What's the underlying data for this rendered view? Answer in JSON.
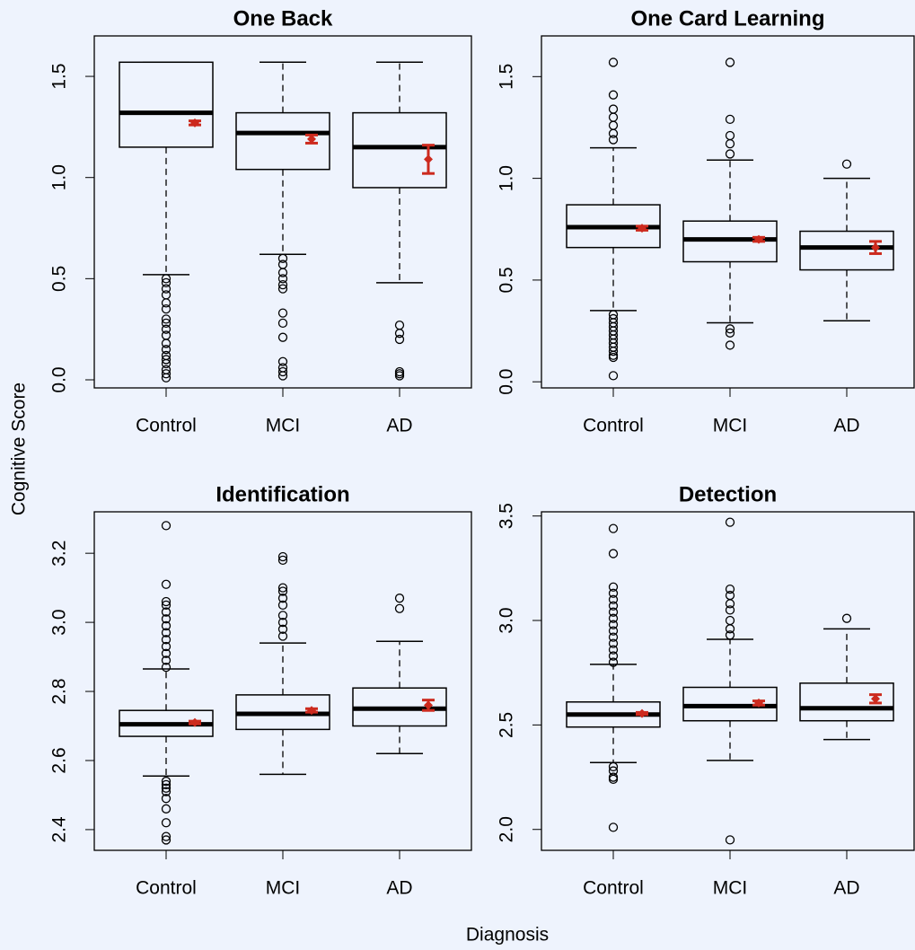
{
  "xlabel": "Diagnosis",
  "ylabel": "Cognitive Score",
  "chart_data": [
    {
      "type": "box",
      "title": "One Back",
      "categories": [
        "Control",
        "MCI",
        "AD"
      ],
      "ylim": [
        -0.04,
        1.7
      ],
      "yticks": [
        {
          "value": 0,
          "label": "0.0"
        },
        0.5,
        {
          "value": 1,
          "label": "1.0"
        },
        1.5
      ],
      "box_color": "#000000",
      "mean_color": "#cc2a1e",
      "boxes": [
        {
          "whisker_low": 0.52,
          "q1": 1.15,
          "median": 1.32,
          "q3": 1.57,
          "whisker_high": 1.57,
          "mean": 1.27,
          "mean_error": 0.01,
          "outliers": [
            0.5,
            0.48,
            0.45,
            0.42,
            0.38,
            0.35,
            0.3,
            0.28,
            0.25,
            0.22,
            0.18,
            0.15,
            0.12,
            0.1,
            0.08,
            0.05,
            0.03,
            0.01
          ]
        },
        {
          "whisker_low": 0.62,
          "q1": 1.04,
          "median": 1.22,
          "q3": 1.32,
          "whisker_high": 1.57,
          "mean": 1.19,
          "mean_error": 0.02,
          "outliers": [
            0.6,
            0.57,
            0.53,
            0.5,
            0.47,
            0.45,
            0.33,
            0.28,
            0.21,
            0.09,
            0.06,
            0.04,
            0.02
          ]
        },
        {
          "whisker_low": 0.48,
          "q1": 0.95,
          "median": 1.15,
          "q3": 1.32,
          "whisker_high": 1.57,
          "mean": 1.09,
          "mean_error": 0.07,
          "outliers": [
            0.27,
            0.23,
            0.2,
            0.04,
            0.03,
            0.02
          ]
        }
      ]
    },
    {
      "type": "box",
      "title": "One Card Learning",
      "categories": [
        "Control",
        "MCI",
        "AD"
      ],
      "ylim": [
        -0.03,
        1.7
      ],
      "yticks": [
        {
          "value": 0,
          "label": "0.0"
        },
        0.5,
        {
          "value": 1,
          "label": "1.0"
        },
        1.5
      ],
      "box_color": "#000000",
      "mean_color": "#cc2a1e",
      "boxes": [
        {
          "whisker_low": 0.35,
          "q1": 0.66,
          "median": 0.76,
          "q3": 0.87,
          "whisker_high": 1.15,
          "mean": 0.755,
          "mean_error": 0.01,
          "outliers": [
            1.19,
            1.22,
            1.26,
            1.3,
            1.34,
            1.41,
            1.57,
            0.33,
            0.31,
            0.29,
            0.27,
            0.25,
            0.23,
            0.21,
            0.19,
            0.17,
            0.15,
            0.13,
            0.12,
            0.03
          ]
        },
        {
          "whisker_low": 0.29,
          "q1": 0.59,
          "median": 0.7,
          "q3": 0.79,
          "whisker_high": 1.09,
          "mean": 0.7,
          "mean_error": 0.01,
          "outliers": [
            1.12,
            1.17,
            1.21,
            1.29,
            1.57,
            0.26,
            0.24,
            0.18
          ]
        },
        {
          "whisker_low": 0.3,
          "q1": 0.55,
          "median": 0.66,
          "q3": 0.74,
          "whisker_high": 1.0,
          "mean": 0.66,
          "mean_error": 0.03,
          "outliers": [
            1.07
          ]
        }
      ]
    },
    {
      "type": "box",
      "title": "Identification",
      "categories": [
        "Control",
        "MCI",
        "AD"
      ],
      "ylim": [
        2.34,
        3.32
      ],
      "yticks": [
        2.4,
        2.6,
        2.8,
        {
          "value": 3,
          "label": "3.0"
        },
        3.2
      ],
      "box_color": "#000000",
      "mean_color": "#cc2a1e",
      "boxes": [
        {
          "whisker_low": 2.555,
          "q1": 2.67,
          "median": 2.705,
          "q3": 2.745,
          "whisker_high": 2.865,
          "mean": 2.71,
          "mean_error": 0.004,
          "outliers": [
            2.87,
            2.89,
            2.91,
            2.93,
            2.95,
            2.97,
            2.99,
            3.01,
            3.03,
            3.05,
            3.06,
            3.11,
            3.28,
            2.54,
            2.53,
            2.52,
            2.51,
            2.49,
            2.46,
            2.42,
            2.38,
            2.37
          ]
        },
        {
          "whisker_low": 2.56,
          "q1": 2.69,
          "median": 2.735,
          "q3": 2.79,
          "whisker_high": 2.94,
          "mean": 2.745,
          "mean_error": 0.005,
          "outliers": [
            2.96,
            2.98,
            3.0,
            3.02,
            3.05,
            3.07,
            3.09,
            3.1,
            3.18,
            3.19
          ]
        },
        {
          "whisker_low": 2.62,
          "q1": 2.7,
          "median": 2.75,
          "q3": 2.81,
          "whisker_high": 2.945,
          "mean": 2.76,
          "mean_error": 0.015,
          "outliers": [
            3.04,
            3.07
          ]
        }
      ]
    },
    {
      "type": "box",
      "title": "Detection",
      "categories": [
        "Control",
        "MCI",
        "AD"
      ],
      "ylim": [
        1.9,
        3.52
      ],
      "yticks": [
        {
          "value": 2,
          "label": "2.0"
        },
        2.5,
        {
          "value": 3,
          "label": "3.0"
        },
        3.5
      ],
      "box_color": "#000000",
      "mean_color": "#cc2a1e",
      "boxes": [
        {
          "whisker_low": 2.32,
          "q1": 2.49,
          "median": 2.55,
          "q3": 2.61,
          "whisker_high": 2.79,
          "mean": 2.555,
          "mean_error": 0.005,
          "outliers": [
            2.8,
            2.83,
            2.86,
            2.89,
            2.92,
            2.95,
            2.98,
            3.01,
            3.04,
            3.07,
            3.1,
            3.13,
            3.16,
            3.32,
            3.44,
            2.3,
            2.28,
            2.25,
            2.24,
            2.01
          ]
        },
        {
          "whisker_low": 2.33,
          "q1": 2.52,
          "median": 2.59,
          "q3": 2.68,
          "whisker_high": 2.91,
          "mean": 2.605,
          "mean_error": 0.01,
          "outliers": [
            2.93,
            2.96,
            3.0,
            3.05,
            3.08,
            3.12,
            3.15,
            3.47,
            1.95
          ]
        },
        {
          "whisker_low": 2.43,
          "q1": 2.52,
          "median": 2.58,
          "q3": 2.7,
          "whisker_high": 2.96,
          "mean": 2.625,
          "mean_error": 0.02,
          "outliers": [
            3.01
          ]
        }
      ]
    }
  ]
}
